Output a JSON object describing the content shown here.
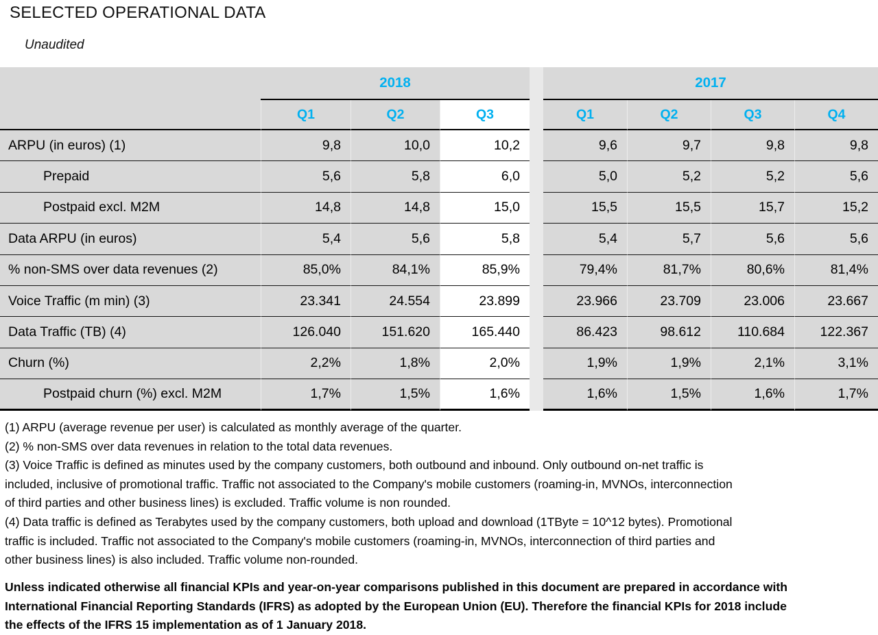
{
  "title": "SELECTED OPERATIONAL DATA",
  "subtitle": "Unaudited",
  "colors": {
    "accent_cyan": "#00B0F0",
    "table_background": "#D9D9D9",
    "gap_background": "#E9E9E9",
    "highlight_background": "#FFFFFF",
    "border": "#000000"
  },
  "table": {
    "year_groups": [
      {
        "label": "2018",
        "quarters": [
          "Q1",
          "Q2",
          "Q3"
        ],
        "highlighted_quarter": "Q3"
      },
      {
        "label": "2017",
        "quarters": [
          "Q1",
          "Q2",
          "Q3",
          "Q4"
        ],
        "highlighted_quarter": null
      }
    ],
    "rows": [
      {
        "label": "ARPU (in euros) (1)",
        "indent": false,
        "values_2018": [
          "9,8",
          "10,0",
          "10,2"
        ],
        "values_2017": [
          "9,6",
          "9,7",
          "9,8",
          "9,8"
        ]
      },
      {
        "label": "Prepaid",
        "indent": true,
        "values_2018": [
          "5,6",
          "5,8",
          "6,0"
        ],
        "values_2017": [
          "5,0",
          "5,2",
          "5,2",
          "5,6"
        ]
      },
      {
        "label": "Postpaid excl. M2M",
        "indent": true,
        "values_2018": [
          "14,8",
          "14,8",
          "15,0"
        ],
        "values_2017": [
          "15,5",
          "15,5",
          "15,7",
          "15,2"
        ]
      },
      {
        "label": "Data ARPU (in euros)",
        "indent": false,
        "values_2018": [
          "5,4",
          "5,6",
          "5,8"
        ],
        "values_2017": [
          "5,4",
          "5,7",
          "5,6",
          "5,6"
        ]
      },
      {
        "label": "% non-SMS over data revenues (2)",
        "indent": false,
        "values_2018": [
          "85,0%",
          "84,1%",
          "85,9%"
        ],
        "values_2017": [
          "79,4%",
          "81,7%",
          "80,6%",
          "81,4%"
        ]
      },
      {
        "label": "Voice Traffic (m min) (3)",
        "indent": false,
        "values_2018": [
          "23.341",
          "24.554",
          "23.899"
        ],
        "values_2017": [
          "23.966",
          "23.709",
          "23.006",
          "23.667"
        ]
      },
      {
        "label": "Data Traffic (TB) (4)",
        "indent": false,
        "values_2018": [
          "126.040",
          "151.620",
          "165.440"
        ],
        "values_2017": [
          "86.423",
          "98.612",
          "110.684",
          "122.367"
        ]
      },
      {
        "label": "Churn (%)",
        "indent": false,
        "values_2018": [
          "2,2%",
          "1,8%",
          "2,0%"
        ],
        "values_2017": [
          "1,9%",
          "1,9%",
          "2,1%",
          "3,1%"
        ]
      },
      {
        "label": "Postpaid churn (%) excl. M2M",
        "indent": true,
        "values_2018": [
          "1,7%",
          "1,5%",
          "1,6%"
        ],
        "values_2017": [
          "1,6%",
          "1,5%",
          "1,6%",
          "1,7%"
        ]
      }
    ]
  },
  "footnotes": [
    "(1) ARPU (average revenue per user) is calculated as monthly average of the quarter.",
    "(2) % non-SMS over data revenues in relation to the total data revenues.",
    "(3) Voice Traffic is defined as minutes used by the company customers, both outbound and inbound. Only outbound on-net traffic is",
    "included, inclusive of promotional traffic. Traffic not associated to the Company's mobile customers (roaming-in, MVNOs, interconnection",
    "of third parties and other business lines) is excluded. Traffic volume is non rounded.",
    "(4) Data traffic is defined as Terabytes used by the company customers, both upload and download (1TByte = 10^12 bytes). Promotional",
    "traffic is included. Traffic not associated to the Company's mobile customers (roaming-in, MVNOs, interconnection of third parties and",
    "other business lines) is also included. Traffic volume non-rounded."
  ],
  "disclaimer": [
    "Unless indicated otherwise all financial KPIs and year-on-year comparisons published in this document are prepared in accordance with",
    "International Financial Reporting Standards (IFRS) as adopted by the European Union (EU). Therefore the financial KPIs for 2018 include",
    "the effects of the IFRS 15 implementation as of 1 January 2018."
  ]
}
